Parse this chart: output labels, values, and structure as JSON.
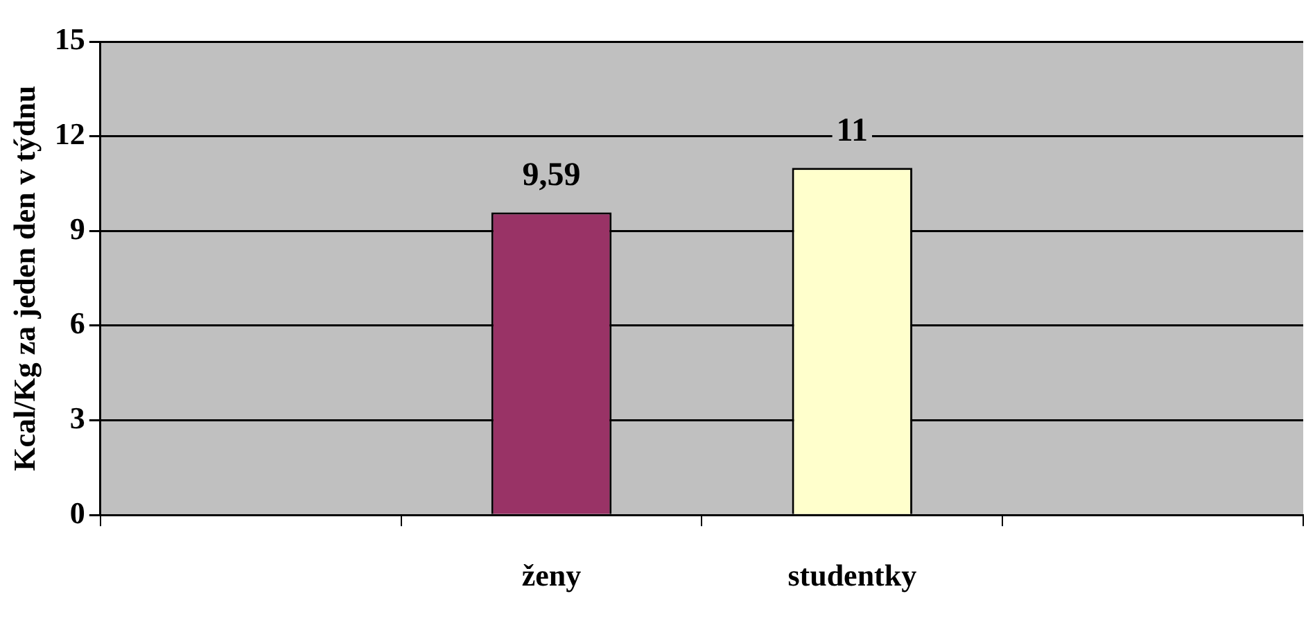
{
  "chart_data": {
    "type": "bar",
    "ylabel": "Kcal/Kg za jeden den v týdnu",
    "categories": [
      null,
      "ženy",
      "studentky",
      null
    ],
    "values": [
      null,
      9.59,
      11,
      null
    ],
    "colors": [
      null,
      "#993366",
      "#ffffcc",
      null
    ],
    "ylim": [
      0,
      15
    ],
    "yticks": [
      0,
      3,
      6,
      9,
      12,
      15
    ],
    "grid": "y",
    "data_labels": true,
    "value_labels": [
      null,
      "9,59",
      "11",
      null
    ]
  }
}
